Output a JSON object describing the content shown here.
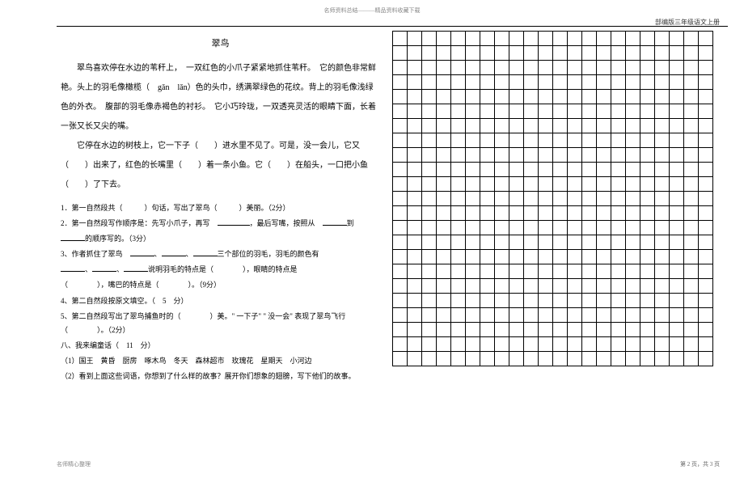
{
  "topNote": "名师资料总结———精品资料收藏下载",
  "topRight": "部编版三年级语文上册",
  "title": "翠鸟",
  "para1": "翠鸟喜欢停在水边的苇秆上，　一双红色的小爪子紧紧地抓住苇秆。　它的颜色非常鲜艳。头上的羽毛像橄榄（　gǎn　lǎn）色的头巾，绣满翠绿色的花纹。背上的羽毛像浅绿色的外衣。　腹部的羽毛像赤褐色的衬衫。　它小巧玲珑，一双透亮灵活的眼睛下面，长着一张又长又尖的嘴。",
  "para2": "它停在水边的树枝上，它一下子（　　）进水里不见了。可是，没一会儿，它又（　　）出来了，红色的长嘴里（　　）着一条小鱼。它（　　）在船头，一口把小鱼（　　）了下去。",
  "q1": "1．第一自然段共（　　　）句话，写出了翠鸟（　　　）美丽。（2分）",
  "q2a": "2．第一自然段写作顺序是：先写小爪子，再写　",
  "q2b": "，最后写嘴，按照从　",
  "q2c": "到",
  "q2d": "的顺序写的。（3分）",
  "q3a": "3、作者抓住了翠鸟　",
  "q3b": "、",
  "q3c": "、",
  "q3d": "三个部位的羽毛，羽毛的颜色有",
  "q3e": "、",
  "q3f": "、",
  "q3g": "说明羽毛的特点是（　　　　），眼睛的特点是",
  "q3h": "（　　　　），嘴巴的特点是（　　　　）。（9分）",
  "q4": "4、第二自然段按原文填空。（　5　分）",
  "q5": "5、第二自然段写出了翠鸟捕鱼时的（　　　　）美。\" 一下子\" \" 没一会\" 表现了翠鸟飞行（　　　　）。（2分）",
  "q8": "八、我来编童话（　11　分）",
  "q8_1": "（1）国王　黄昏　厨房　啄木鸟　冬天　森林超市　玫瑰花　星期天　小河边",
  "q8_2": "（2）看到上面这些词语，你想到了什么样的故事？展开你们想象的翅膀，写下他们的故事。",
  "bottomLeft": "名师精心整理",
  "bottomRight": "第 2 页，共 3 页",
  "grid": {
    "rows": 23,
    "cols": 22
  }
}
